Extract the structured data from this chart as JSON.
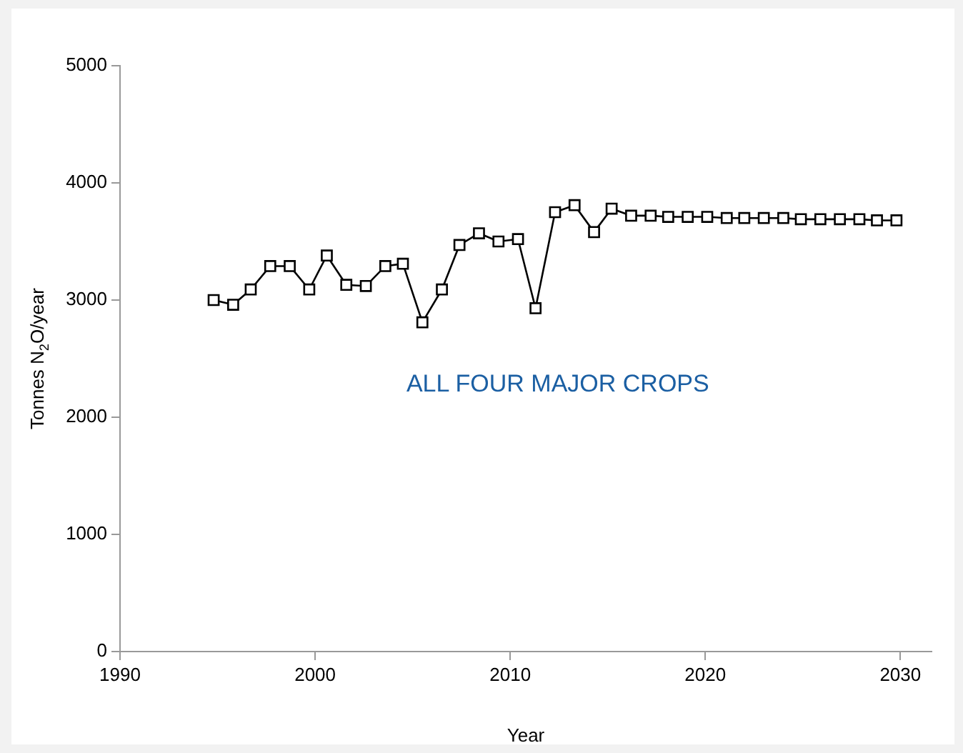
{
  "chart_data": {
    "type": "line",
    "xlabel": "Year",
    "ylabel": "Tonnes N$_{2}$O/year",
    "annotations": [
      "ALL FOUR MAJOR CROPS"
    ],
    "x": [
      1994.8,
      1995.8,
      1996.7,
      1997.7,
      1998.7,
      1999.7,
      2000.6,
      2001.6,
      2002.6,
      2003.6,
      2004.5,
      2005.5,
      2006.5,
      2007.4,
      2008.4,
      2009.4,
      2010.4,
      2011.3,
      2012.3,
      2013.3,
      2014.3,
      2015.2,
      2016.2,
      2017.2,
      2018.1,
      2019.1,
      2020.1,
      2021.1,
      2022.0,
      2023.0,
      2024.0,
      2024.9,
      2025.9,
      2026.9,
      2027.9,
      2028.8,
      2029.8
    ],
    "series": [
      {
        "color": "#000000",
        "values": [
          3000,
          2960,
          3090,
          3290,
          3290,
          3090,
          3380,
          3130,
          3120,
          3290,
          3310,
          2810,
          3090,
          3470,
          3570,
          3500,
          3520,
          2930,
          3750,
          3810,
          3580,
          3780,
          3720,
          3720,
          3710,
          3710,
          3710,
          3700,
          3700,
          3700,
          3700,
          3690,
          3690,
          3690,
          3690,
          3680,
          3680
        ]
      }
    ],
    "xlim": [
      1990,
      2031.6
    ],
    "xticks": [
      1990,
      2000,
      2010,
      2020,
      2030
    ],
    "ylim": [
      0,
      5000
    ],
    "yticks": [
      0,
      1000,
      2000,
      3000,
      4000,
      5000
    ],
    "marker": "square",
    "line_style": "solid",
    "legend": false,
    "grid": false
  }
}
